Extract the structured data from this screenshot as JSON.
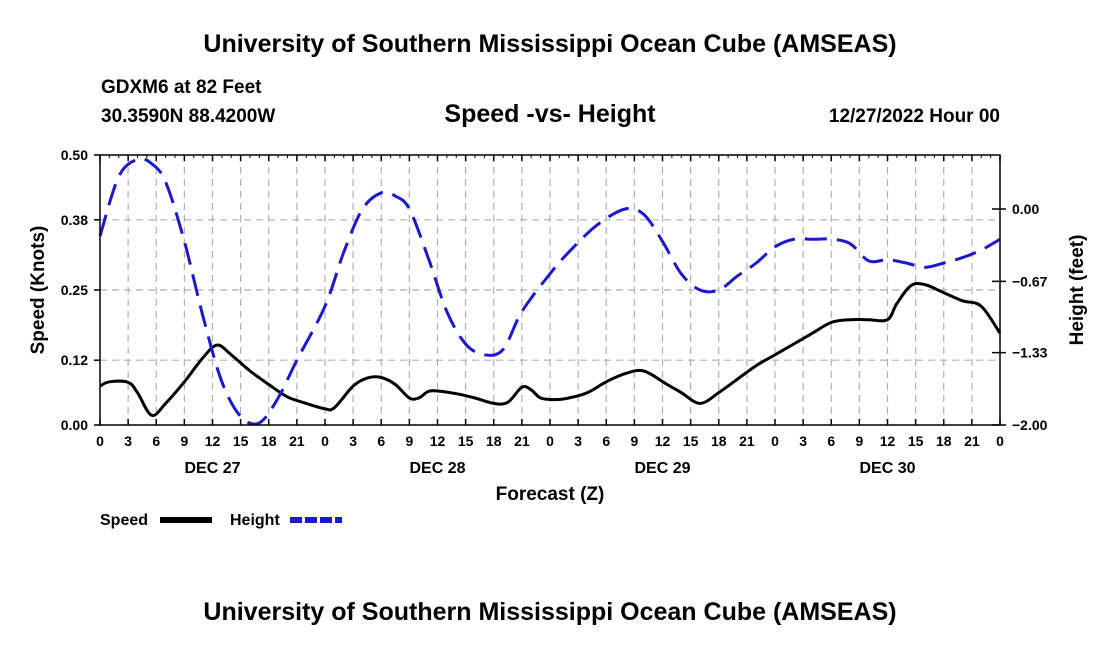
{
  "header": {
    "title": "University of Southern Mississippi Ocean Cube (AMSEAS)",
    "station": "GDXM6 at 82 Feet",
    "coords": "30.3590N  88.4200W",
    "subtitle": "Speed -vs- Height",
    "datetime": "12/27/2022 Hour 00"
  },
  "footer": {
    "title": "University of Southern Mississippi Ocean Cube (AMSEAS)"
  },
  "colors": {
    "speed": "#000000",
    "height": "#1a1acc",
    "grid": "#b0b0b0"
  },
  "chart_data": {
    "type": "line",
    "title": "Speed -vs- Height",
    "xlabel": "Forecast (Z)",
    "ylabel": "Speed (Knots)",
    "y2label": "Height (feet)",
    "xlim": [
      0,
      96
    ],
    "ylim": [
      0,
      0.5
    ],
    "y2lim": [
      -2.0,
      0.5
    ],
    "x_tick_values": [
      0,
      3,
      6,
      9,
      12,
      15,
      18,
      21,
      24,
      27,
      30,
      33,
      36,
      39,
      42,
      45,
      48,
      51,
      54,
      57,
      60,
      63,
      66,
      69,
      72,
      75,
      78,
      81,
      84,
      87,
      90,
      93,
      96
    ],
    "x_tick_labels": [
      "0",
      "3",
      "6",
      "9",
      "12",
      "15",
      "18",
      "21",
      "0",
      "3",
      "6",
      "9",
      "12",
      "15",
      "18",
      "21",
      "0",
      "3",
      "6",
      "9",
      "12",
      "15",
      "18",
      "21",
      "0",
      "3",
      "6",
      "9",
      "12",
      "15",
      "18",
      "21",
      "0"
    ],
    "x_day_labels": [
      {
        "x": 12,
        "label": "DEC 27"
      },
      {
        "x": 36,
        "label": "DEC 28"
      },
      {
        "x": 60,
        "label": "DEC 29"
      },
      {
        "x": 84,
        "label": "DEC 30"
      }
    ],
    "y_ticks": [
      0.0,
      0.12,
      0.25,
      0.38,
      0.5
    ],
    "y_tick_labels": [
      "0.00",
      "0.12",
      "0.25",
      "0.38",
      "0.50"
    ],
    "y2_ticks": [
      0.0,
      -0.67,
      -1.33,
      -2.0
    ],
    "y2_tick_labels": [
      "0.00",
      "−0.67",
      "−1.33",
      "−2.00"
    ],
    "series": [
      {
        "name": "Speed",
        "axis": "left",
        "style": "solid",
        "x": [
          0,
          1,
          3,
          4,
          5.5,
          7,
          9,
          11,
          12.5,
          14,
          16,
          18,
          20,
          22,
          24,
          25,
          27,
          28.5,
          30,
          31.5,
          33,
          34,
          35,
          36,
          38,
          40,
          42,
          43.5,
          45,
          46,
          47,
          48.5,
          50,
          52,
          54,
          56,
          58,
          60.5,
          62,
          64,
          66,
          68,
          70,
          72,
          74,
          76,
          78,
          80,
          82,
          84,
          85,
          86.5,
          88,
          90,
          92,
          94,
          96
        ],
        "values": [
          0.072,
          0.08,
          0.079,
          0.06,
          0.018,
          0.04,
          0.08,
          0.125,
          0.148,
          0.13,
          0.1,
          0.075,
          0.052,
          0.04,
          0.03,
          0.032,
          0.072,
          0.087,
          0.088,
          0.075,
          0.05,
          0.05,
          0.062,
          0.063,
          0.058,
          0.05,
          0.04,
          0.042,
          0.07,
          0.065,
          0.05,
          0.047,
          0.05,
          0.06,
          0.08,
          0.095,
          0.1,
          0.075,
          0.06,
          0.04,
          0.06,
          0.085,
          0.11,
          0.13,
          0.15,
          0.17,
          0.19,
          0.195,
          0.195,
          0.195,
          0.225,
          0.258,
          0.26,
          0.245,
          0.23,
          0.22,
          0.17
        ]
      },
      {
        "name": "Height",
        "axis": "right",
        "style": "dashed",
        "x": [
          0,
          2,
          4,
          5.5,
          7,
          9,
          11,
          13,
          15,
          17,
          19,
          21,
          24,
          26,
          28,
          30,
          31.5,
          33,
          35,
          37,
          39,
          41,
          43,
          45,
          48,
          50,
          53,
          56,
          58,
          60,
          62,
          64,
          66,
          68,
          70,
          72,
          74,
          76,
          78,
          80,
          82,
          84,
          86,
          88,
          90,
          92,
          94,
          96
        ],
        "values": [
          -0.25,
          0.3,
          0.46,
          0.42,
          0.25,
          -0.3,
          -1.0,
          -1.6,
          -1.92,
          -1.98,
          -1.75,
          -1.4,
          -0.9,
          -0.4,
          0.0,
          0.15,
          0.12,
          0.0,
          -0.45,
          -0.95,
          -1.25,
          -1.35,
          -1.3,
          -0.95,
          -0.6,
          -0.4,
          -0.15,
          0.0,
          -0.05,
          -0.3,
          -0.6,
          -0.75,
          -0.75,
          -0.62,
          -0.5,
          -0.35,
          -0.28,
          -0.28,
          -0.28,
          -0.32,
          -0.48,
          -0.47,
          -0.5,
          -0.54,
          -0.5,
          -0.45,
          -0.38,
          -0.28
        ]
      }
    ],
    "legend": [
      "Speed",
      "Height"
    ],
    "legend_position": "bottom-left",
    "grid": true
  }
}
